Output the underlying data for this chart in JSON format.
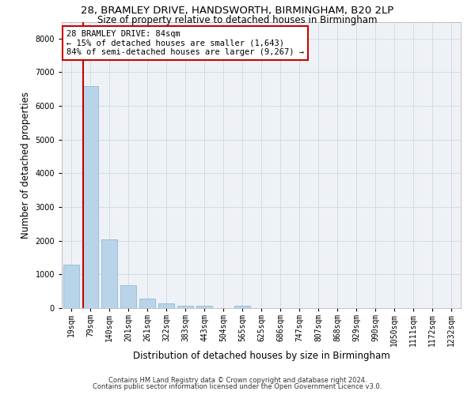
{
  "title1": "28, BRAMLEY DRIVE, HANDSWORTH, BIRMINGHAM, B20 2LP",
  "title2": "Size of property relative to detached houses in Birmingham",
  "xlabel": "Distribution of detached houses by size in Birmingham",
  "ylabel": "Number of detached properties",
  "bar_labels": [
    "19sqm",
    "79sqm",
    "140sqm",
    "201sqm",
    "261sqm",
    "322sqm",
    "383sqm",
    "443sqm",
    "504sqm",
    "565sqm",
    "625sqm",
    "686sqm",
    "747sqm",
    "807sqm",
    "868sqm",
    "929sqm",
    "990sqm",
    "1050sqm",
    "1111sqm",
    "1172sqm",
    "1232sqm"
  ],
  "bar_values": [
    1300,
    6600,
    2050,
    680,
    290,
    130,
    80,
    80,
    0,
    75,
    0,
    0,
    0,
    0,
    0,
    0,
    0,
    0,
    0,
    0,
    0
  ],
  "bar_color": "#b8d4e8",
  "bar_edge_color": "#8ab0cc",
  "property_line_color": "#cc0000",
  "property_line_x": 0.635,
  "annotation_text": "28 BRAMLEY DRIVE: 84sqm\n← 15% of detached houses are smaller (1,643)\n84% of semi-detached houses are larger (9,267) →",
  "annotation_box_color": "#ffffff",
  "annotation_box_edge_color": "#cc0000",
  "ylim": [
    0,
    8500
  ],
  "yticks": [
    0,
    1000,
    2000,
    3000,
    4000,
    5000,
    6000,
    7000,
    8000
  ],
  "grid_color": "#d0d8e0",
  "bg_color": "#eef2f7",
  "footer1": "Contains HM Land Registry data © Crown copyright and database right 2024.",
  "footer2": "Contains public sector information licensed under the Open Government Licence v3.0.",
  "title_fontsize": 9.5,
  "subtitle_fontsize": 8.5,
  "axis_label_fontsize": 8.5,
  "ylabel_fontsize": 8.5,
  "tick_fontsize": 7,
  "footer_fontsize": 6,
  "annot_fontsize": 7.5
}
